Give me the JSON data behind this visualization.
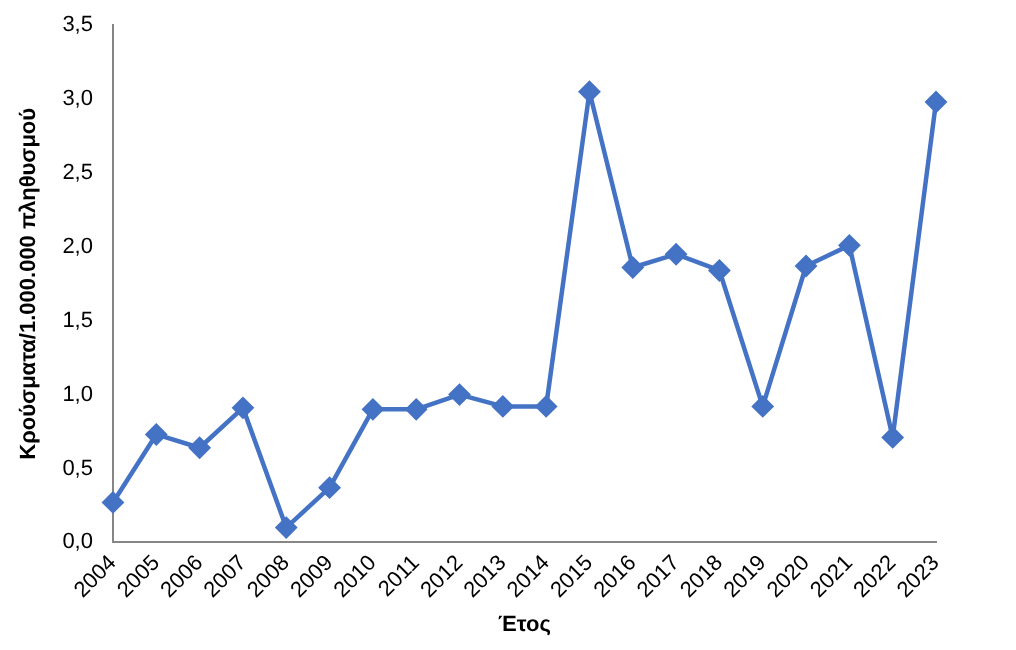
{
  "chart_data": {
    "type": "line",
    "xlabel": "Έτος",
    "ylabel": "Κρούσματα/1.000.000 πληθυσμού",
    "categories": [
      "2004",
      "2005",
      "2006",
      "2007",
      "2008",
      "2009",
      "2010",
      "2011",
      "2012",
      "2013",
      "2014",
      "2015",
      "2016",
      "2017",
      "2018",
      "2019",
      "2020",
      "2021",
      "2022",
      "2023"
    ],
    "series": [
      {
        "color": "#4472c4",
        "values": [
          0.27,
          0.73,
          0.64,
          0.91,
          0.1,
          0.37,
          0.9,
          0.9,
          1.0,
          0.92,
          0.92,
          3.05,
          1.86,
          1.95,
          1.84,
          0.92,
          1.87,
          2.01,
          0.71,
          2.98
        ]
      }
    ],
    "ylim": [
      0,
      3.5
    ],
    "yticks": [
      {
        "value": 0,
        "label": "0,0"
      },
      {
        "value": 0.5,
        "label": "0,5"
      },
      {
        "value": 1,
        "label": "1,0"
      },
      {
        "value": 1.5,
        "label": "1,5"
      },
      {
        "value": 2,
        "label": "2,0"
      },
      {
        "value": 2.5,
        "label": "2,5"
      },
      {
        "value": 3,
        "label": "3,0"
      },
      {
        "value": 3.5,
        "label": "3,5"
      }
    ],
    "grid": false,
    "legend": false,
    "marker": "diamond",
    "line_style": "solid"
  }
}
